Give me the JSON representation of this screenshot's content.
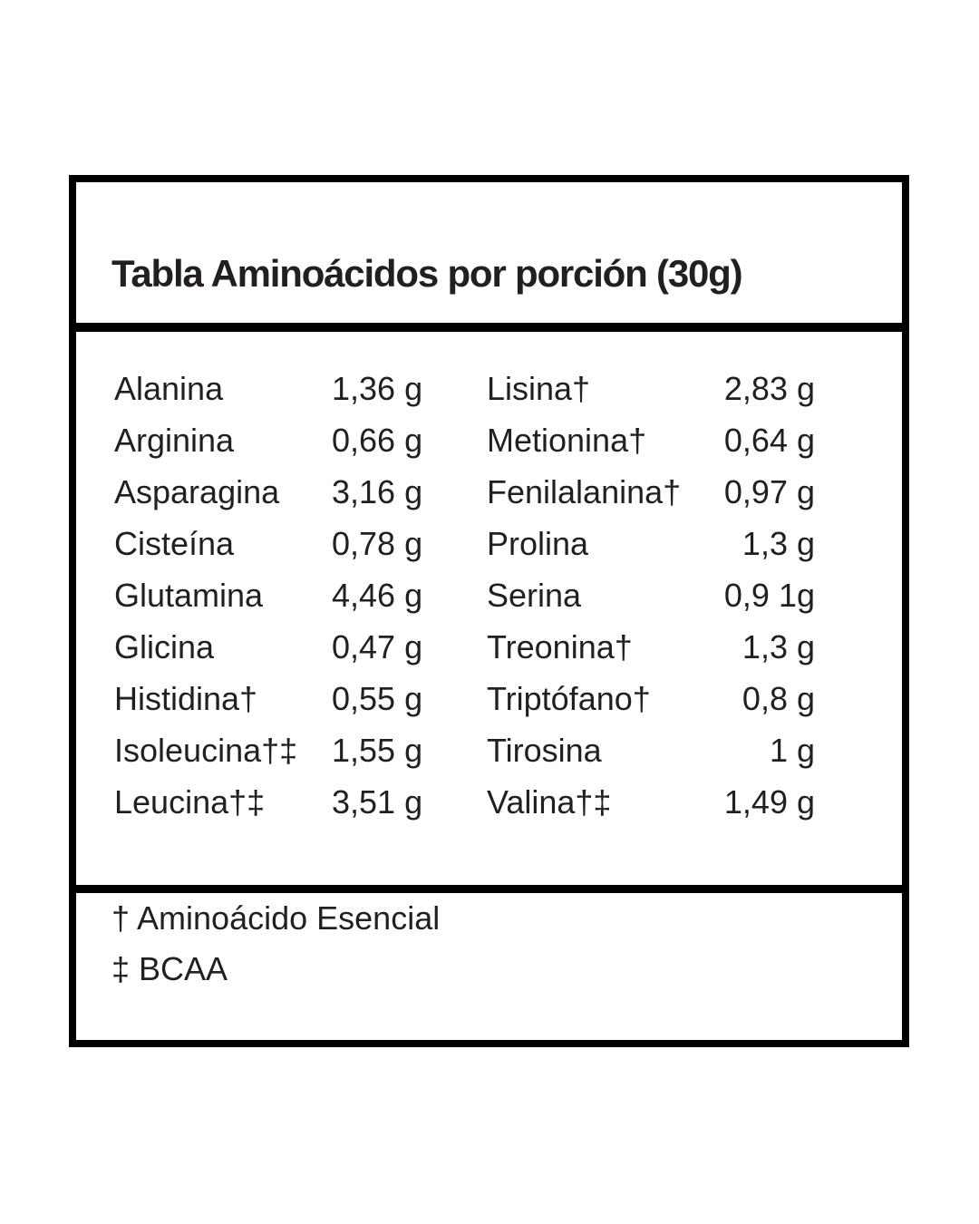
{
  "table": {
    "title": "Tabla Aminoácidos por porción (30g)",
    "rows": [
      {
        "left_name": "Alanina",
        "left_value": "1,36 g",
        "right_name": "Lisina†",
        "right_value": "2,83 g"
      },
      {
        "left_name": "Arginina",
        "left_value": "0,66 g",
        "right_name": "Metionina†",
        "right_value": "0,64 g"
      },
      {
        "left_name": "Asparagina",
        "left_value": "3,16 g",
        "right_name": "Fenilalanina†",
        "right_value": "0,97 g"
      },
      {
        "left_name": "Cisteína",
        "left_value": "0,78 g",
        "right_name": "Prolina",
        "right_value": "1,3 g"
      },
      {
        "left_name": "Glutamina",
        "left_value": "4,46 g",
        "right_name": "Serina",
        "right_value": "0,9 1g"
      },
      {
        "left_name": "Glicina",
        "left_value": "0,47 g",
        "right_name": "Treonina†",
        "right_value": "1,3 g"
      },
      {
        "left_name": "Histidina†",
        "left_value": "0,55 g",
        "right_name": "Triptófano†",
        "right_value": "0,8 g"
      },
      {
        "left_name": "Isoleucina†‡",
        "left_value": "1,55 g",
        "right_name": "Tirosina",
        "right_value": "1 g"
      },
      {
        "left_name": "Leucina†‡",
        "left_value": "3,51 g",
        "right_name": "Valina†‡",
        "right_value": "1,49 g"
      }
    ],
    "footnotes": [
      "† Aminoácido Esencial",
      "‡ BCAA"
    ],
    "colors": {
      "border": "#000000",
      "text": "#231f20",
      "background": "#ffffff"
    }
  }
}
